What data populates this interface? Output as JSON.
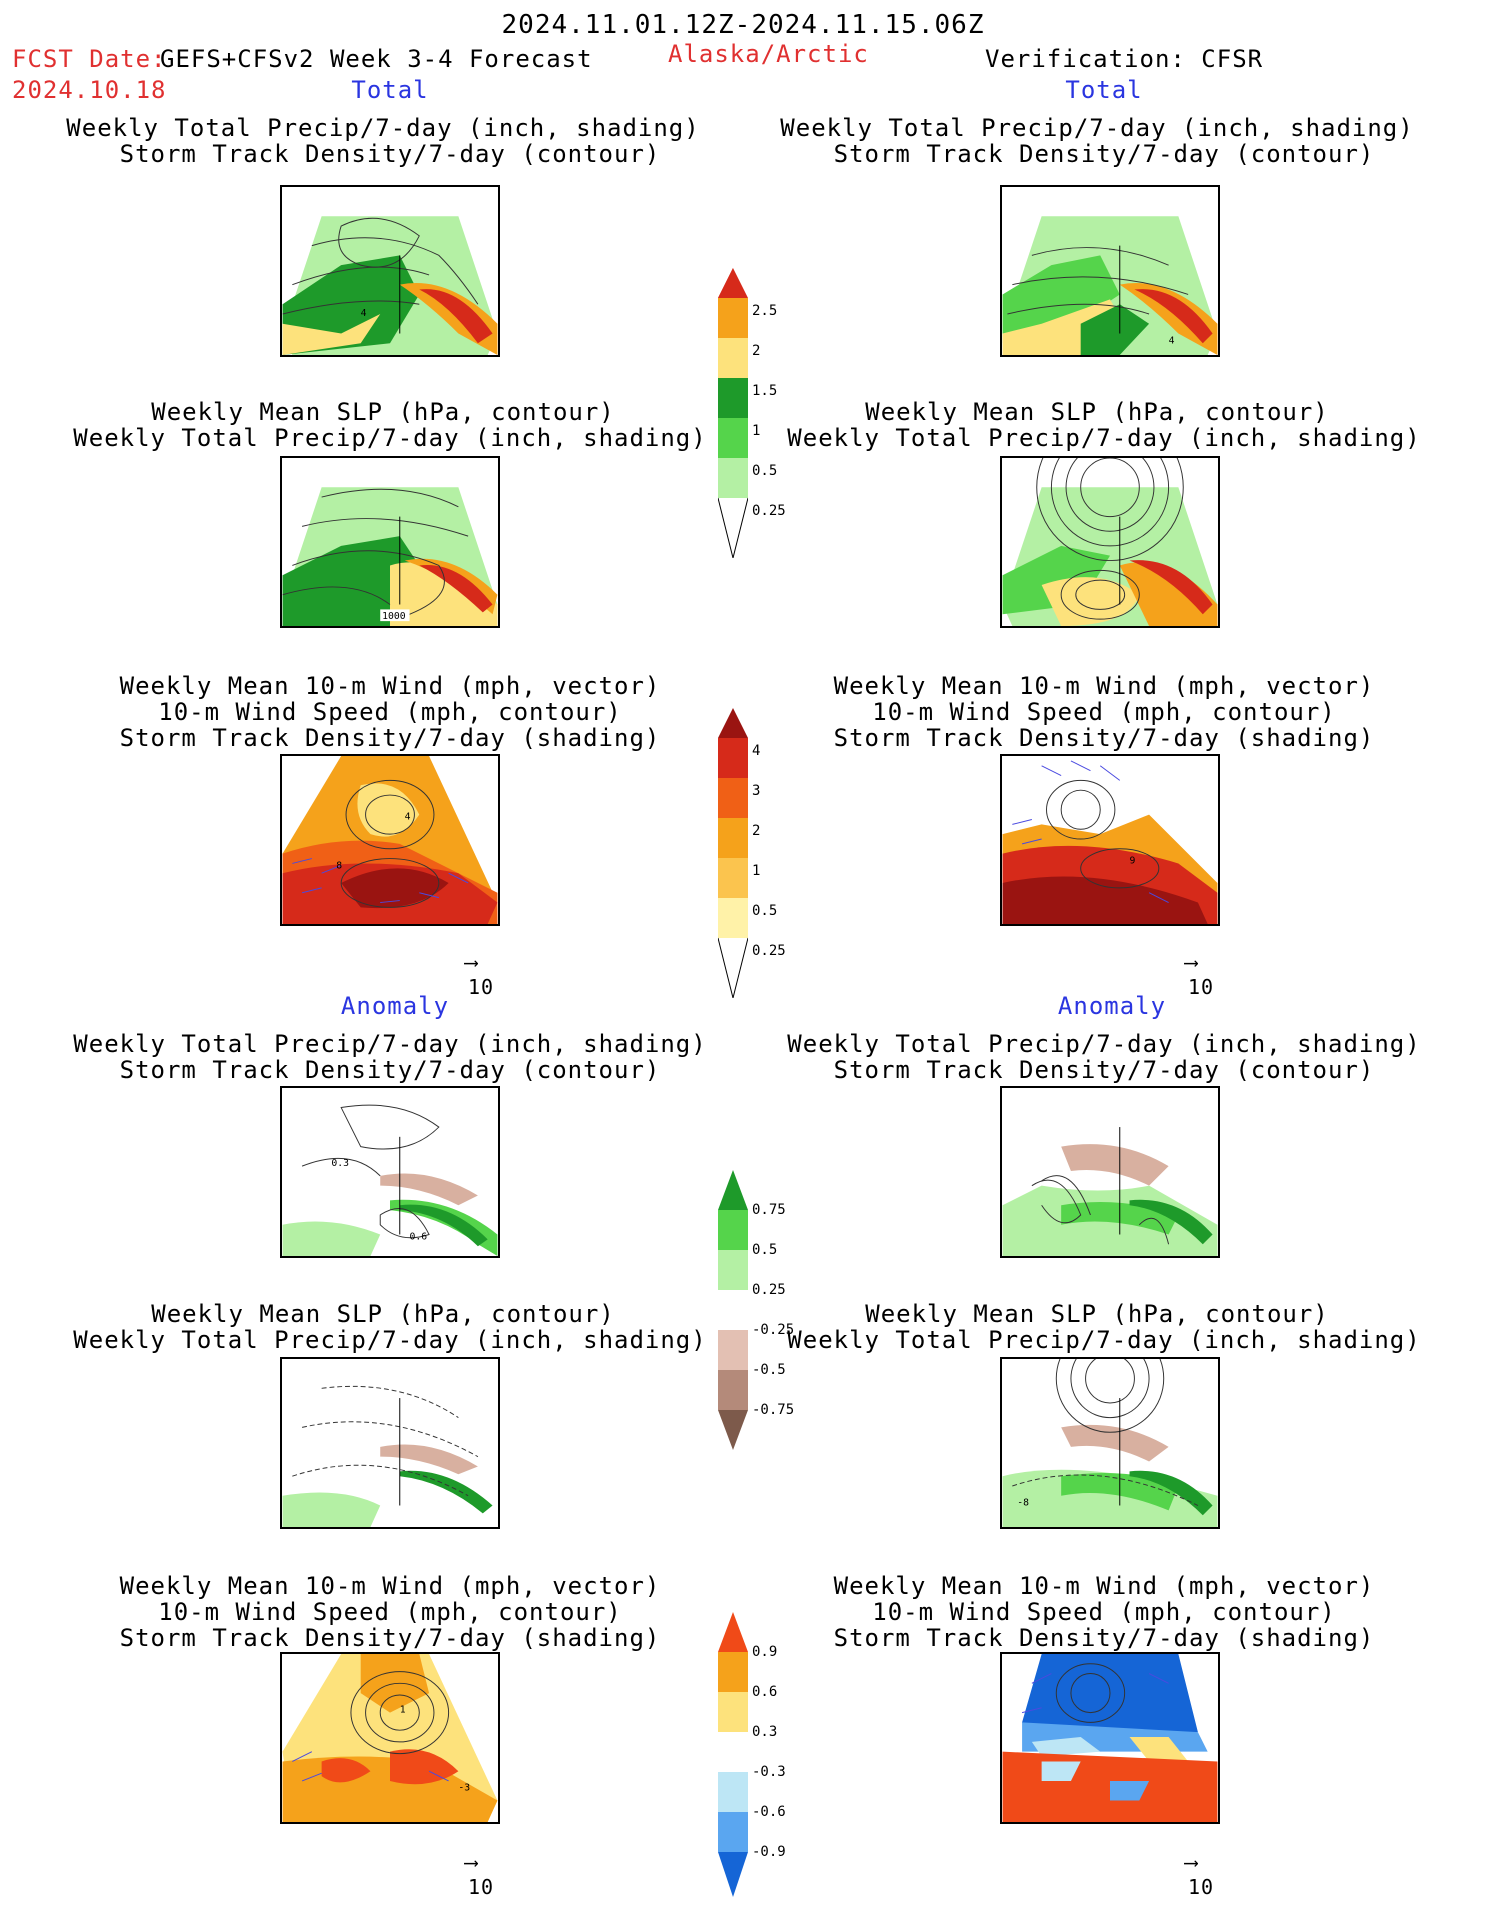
{
  "header": {
    "date_range": "2024.11.01.12Z-2024.11.15.06Z",
    "fcst_label": "FCST Date:",
    "model": "GEFS+CFSv2 Week 3-4 Forecast",
    "region": "Alaska/Arctic",
    "fcst_date": "2024.10.18",
    "verification": "Verification: CFSR"
  },
  "sections": {
    "total": "Total",
    "anomaly": "Anomaly"
  },
  "titles": {
    "precip": "Weekly Total Precip/7-day (inch, shading)",
    "storm_contour": "Storm Track Density/7-day (contour)",
    "slp": "Weekly Mean SLP (hPa, contour)",
    "wind_vec": "Weekly Mean 10-m Wind (mph, vector)",
    "wind_speed": "10-m Wind Speed (mph, contour)",
    "storm_shading": "Storm Track Density/7-day (shading)"
  },
  "vector_ref": "10",
  "map_labels": {
    "p1": "4",
    "p2": "1000",
    "p3a": "4",
    "p3b": "8",
    "p4": "4",
    "p6": "9",
    "a1a": "0.3",
    "a1b": "0.6",
    "a5": "-8",
    "a7a": "1",
    "a7b": "-3"
  },
  "colorbars": {
    "precip_total": {
      "labels": [
        "2.5",
        "2",
        "1.5",
        "1",
        "0.5",
        "0.25"
      ],
      "colors": [
        "#d62a1a",
        "#f5a21b",
        "#fde27c",
        "#1e9a2a",
        "#55d44b",
        "#b4f0a4"
      ]
    },
    "storm_total": {
      "labels": [
        "4",
        "3",
        "2",
        "1",
        "0.5",
        "0.25"
      ],
      "colors": [
        "#9a1411",
        "#d62a1a",
        "#f06016",
        "#f5a21b",
        "#fbc44e",
        "#fff2a8"
      ]
    },
    "precip_anom": {
      "labels": [
        "0.75",
        "0.5",
        "0.25",
        "-0.25",
        "-0.5",
        "-0.75"
      ],
      "colors": [
        "#1e9a2a",
        "#55d44b",
        "#b4f0a4",
        "#ffffff",
        "#e3c0b3",
        "#b48a7a",
        "#7d5a4b"
      ]
    },
    "wind_anom": {
      "labels": [
        "0.9",
        "0.6",
        "0.3",
        "-0.3",
        "-0.6",
        "-0.9"
      ],
      "colors": [
        "#f04a18",
        "#f5a21b",
        "#fde27c",
        "#ffffff",
        "#bde6f5",
        "#5aa6f0",
        "#1565d6"
      ]
    }
  }
}
